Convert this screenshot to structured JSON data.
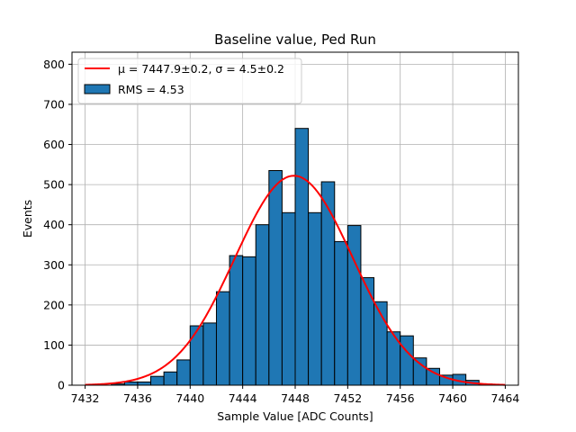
{
  "chart_data": {
    "type": "bar",
    "title": "Baseline value, Ped Run",
    "xlabel": "Sample Value [ADC Counts]",
    "ylabel": "Events",
    "xlim": [
      7431,
      7465
    ],
    "ylim": [
      0,
      830
    ],
    "xticks": [
      7432,
      7436,
      7440,
      7444,
      7448,
      7452,
      7456,
      7460,
      7464
    ],
    "yticks": [
      0,
      100,
      200,
      300,
      400,
      500,
      600,
      700,
      800
    ],
    "grid": true,
    "legend_position": "upper-left",
    "bin_edges": [
      7432,
      7433,
      7434,
      7435,
      7436,
      7437,
      7438,
      7439,
      7440,
      7441,
      7442,
      7443,
      7444,
      7445,
      7446,
      7447,
      7448,
      7449,
      7450,
      7451,
      7452,
      7453,
      7454,
      7455,
      7456,
      7457,
      7458,
      7459,
      7460,
      7461,
      7462,
      7463,
      7464
    ],
    "histogram": {
      "name": "RMS = 4.53",
      "color": "#1f77b4",
      "edgecolor": "#000000",
      "values": [
        0,
        0,
        3,
        8,
        8,
        22,
        33,
        63,
        148,
        155,
        233,
        323,
        320,
        400,
        535,
        430,
        640,
        430,
        507,
        358,
        398,
        268,
        208,
        133,
        123,
        68,
        42,
        25,
        27,
        12,
        3,
        0
      ]
    },
    "fit": {
      "name": "μ = 7447.9±0.2, σ = 4.5±0.2",
      "color": "#ff0000",
      "mu": 7447.9,
      "sigma": 4.5,
      "amplitude": 522,
      "range": [
        7432,
        7464
      ]
    }
  }
}
